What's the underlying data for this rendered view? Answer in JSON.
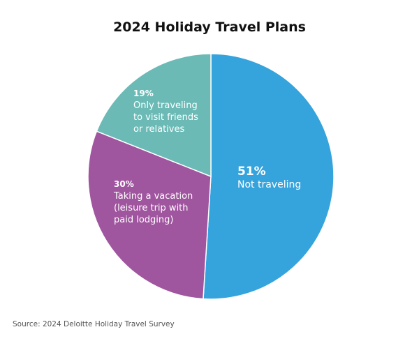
{
  "chart_data": {
    "type": "pie",
    "title": "2024 Holiday Travel Plans",
    "categories": [
      "Not traveling",
      "Taking a vacation\n(leisure trip with\npaid lodging)",
      "Only traveling\nto visit friends\nor relatives"
    ],
    "values": [
      51,
      30,
      19
    ],
    "value_labels": [
      "51%",
      "30%",
      "19%"
    ],
    "colors": [
      "#35a3dc",
      "#a0559f",
      "#6bbab5"
    ],
    "source": "Source: 2024 Deloitte Holiday Travel Survey"
  }
}
